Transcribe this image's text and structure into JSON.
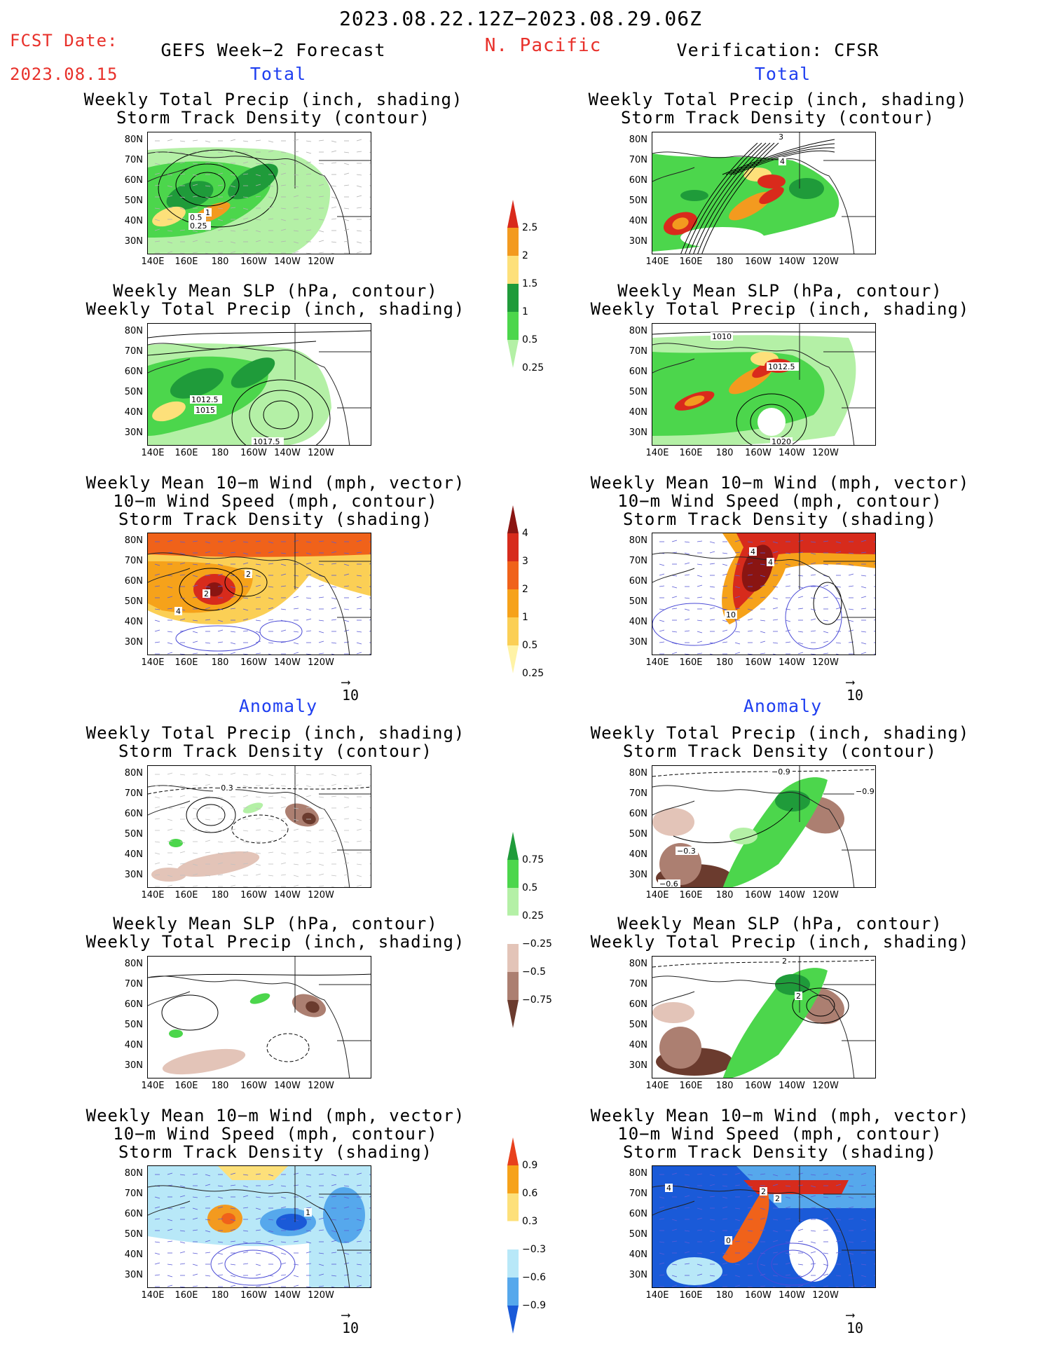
{
  "header": {
    "period": "2023.08.22.12Z−2023.08.29.06Z",
    "fcst_label": "FCST Date:",
    "fcst_date": "2023.08.15",
    "forecast_title": "GEFS Week−2 Forecast",
    "region": "N. Pacific",
    "verification": "Verification: CFSR"
  },
  "sections": {
    "total": "Total",
    "anomaly": "Anomaly"
  },
  "panel_titles": {
    "precip_storm": [
      "Weekly Total Precip (inch, shading)",
      "Storm Track Density (contour)"
    ],
    "slp_precip": [
      "Weekly Mean SLP (hPa, contour)",
      "Weekly Total Precip (inch, shading)"
    ],
    "wind_storm": [
      "Weekly Mean 10−m Wind (mph, vector)",
      "10−m Wind Speed (mph, contour)",
      "Storm Track Density (shading)"
    ]
  },
  "axes": {
    "lat_labels": [
      "80N",
      "70N",
      "60N",
      "50N",
      "40N",
      "30N"
    ],
    "lon_labels": [
      "140E",
      "160E",
      "180",
      "160W",
      "140W",
      "120W"
    ]
  },
  "vector_ref": "10",
  "colorbars": {
    "precip_total": {
      "levels": [
        "2.5",
        "2",
        "1.5",
        "1",
        "0.5",
        "0.25"
      ],
      "colors": [
        "#d92a1c",
        "#f39a1f",
        "#fde07a",
        "#1f9b3a",
        "#4cd64c",
        "#b4f0a6"
      ]
    },
    "storm_total": {
      "levels": [
        "4",
        "3",
        "2",
        "1",
        "0.5",
        "0.25"
      ],
      "colors": [
        "#8a1512",
        "#d72b1c",
        "#f0621a",
        "#f6a21a",
        "#fbcf55",
        "#fff3a6"
      ]
    },
    "precip_anom": {
      "levels": [
        "0.75",
        "0.5",
        "0.25",
        "−0.25",
        "−0.5",
        "−0.75"
      ],
      "colors": [
        "#1f9b3a",
        "#4cd64c",
        "#b4f0a6",
        "#ffffff",
        "#e3c4b8",
        "#ac7f71",
        "#6b3b2e"
      ]
    },
    "storm_anom": {
      "levels": [
        "0.9",
        "0.6",
        "0.3",
        "−0.3",
        "−0.6",
        "−0.9"
      ],
      "colors": [
        "#e8401c",
        "#f6a21a",
        "#fde07a",
        "#ffffff",
        "#b8e8f8",
        "#56a8ec",
        "#1a5ad8"
      ]
    }
  },
  "map_labels": {
    "f1": [
      "0.5",
      "0.25",
      "1"
    ],
    "f2": [
      "1012.5",
      "1015",
      "1017.5"
    ],
    "f3": [
      "2",
      "4",
      "2"
    ],
    "f4": [
      "−0.3"
    ],
    "f6": [
      "1"
    ],
    "v1": [
      "3",
      "4"
    ],
    "v2": [
      "1010",
      "1012.5",
      "1020"
    ],
    "v3": [
      "4",
      "4",
      "10"
    ],
    "v4": [
      "−0.9",
      "−0.3",
      "−0.9",
      "−0.6"
    ],
    "v5": [
      "2",
      "2"
    ],
    "v6": [
      "4",
      "2",
      "2",
      "0"
    ]
  }
}
